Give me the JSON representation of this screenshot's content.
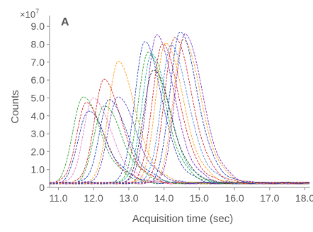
{
  "chart_data": {
    "type": "line",
    "panel_label": "A",
    "ylabel": "Counts",
    "xlabel": "Acquisition time (sec)",
    "y_multiplier": "×10",
    "y_multiplier_exp": "7",
    "xlim": [
      10.75,
      18.15
    ],
    "ylim": [
      0,
      9.6
    ],
    "x_ticks": [
      "11.0",
      "12.0",
      "13.0",
      "14.0",
      "15.0",
      "16.0",
      "17.0",
      "18.0"
    ],
    "y_ticks": [
      "0",
      "1.0",
      "2.0",
      "3.0",
      "4.0",
      "5.0",
      "6.0",
      "7.0",
      "8.0",
      "9.0"
    ],
    "grid": false,
    "series": [
      {
        "color": "#2ca02c",
        "peak_x": 11.7,
        "peak_y": 5.1
      },
      {
        "color": "#d62728",
        "peak_x": 11.8,
        "peak_y": 4.7
      },
      {
        "color": "#1f3fbf",
        "peak_x": 11.85,
        "peak_y": 4.3
      },
      {
        "color": "#e377c2",
        "peak_x": 12.0,
        "peak_y": 5.0
      },
      {
        "color": "#d62728",
        "peak_x": 12.3,
        "peak_y": 6.0
      },
      {
        "color": "#2ca02c",
        "peak_x": 12.3,
        "peak_y": 4.6
      },
      {
        "color": "#1f3fbf",
        "peak_x": 12.45,
        "peak_y": 4.9
      },
      {
        "color": "#ff9f1a",
        "peak_x": 12.7,
        "peak_y": 7.0
      },
      {
        "color": "#5a3fbf",
        "peak_x": 12.7,
        "peak_y": 5.1
      },
      {
        "color": "#1f3fbf",
        "peak_x": 13.45,
        "peak_y": 8.1
      },
      {
        "color": "#2ca02c",
        "peak_x": 13.55,
        "peak_y": 7.6
      },
      {
        "color": "#20b2aa",
        "peak_x": 13.65,
        "peak_y": 7.4
      },
      {
        "color": "#333333",
        "peak_x": 13.7,
        "peak_y": 6.6
      },
      {
        "color": "#7b2cbf",
        "peak_x": 13.8,
        "peak_y": 8.5
      },
      {
        "color": "#d62728",
        "peak_x": 13.95,
        "peak_y": 8.0
      },
      {
        "color": "#ff9f1a",
        "peak_x": 14.05,
        "peak_y": 8.1
      },
      {
        "color": "#4b8be0",
        "peak_x": 14.2,
        "peak_y": 7.9
      },
      {
        "color": "#d62728",
        "peak_x": 14.3,
        "peak_y": 8.4
      },
      {
        "color": "#ff9f1a",
        "peak_x": 14.55,
        "peak_y": 8.3
      },
      {
        "color": "#1f3fbf",
        "peak_x": 14.45,
        "peak_y": 8.7
      },
      {
        "color": "#7b2cbf",
        "peak_x": 14.6,
        "peak_y": 8.6
      }
    ]
  }
}
